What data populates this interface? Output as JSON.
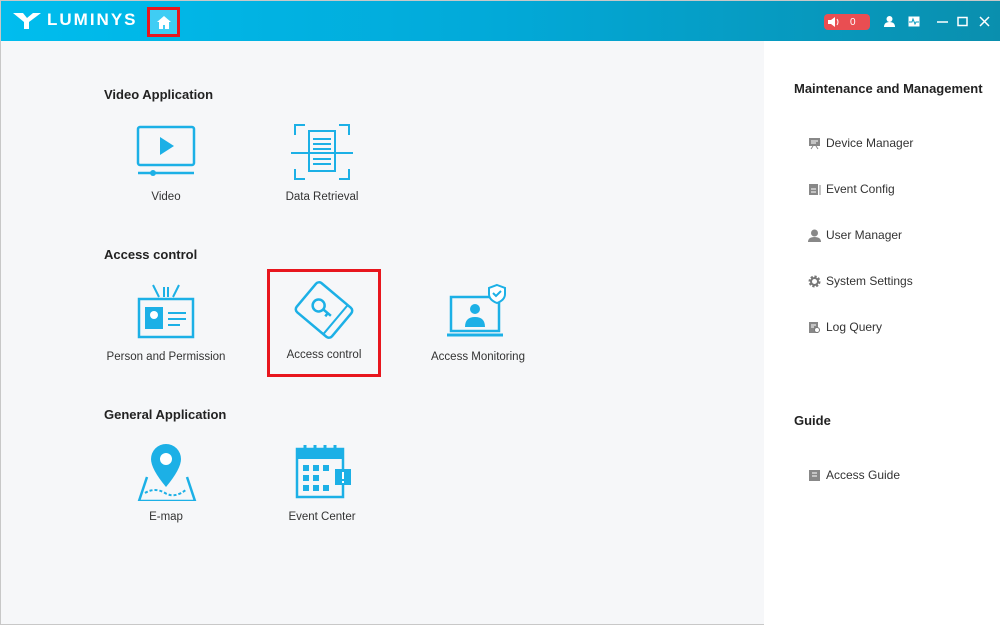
{
  "header": {
    "brand": "LUMINYS",
    "alarm_count": "0",
    "accent": "#00bdee"
  },
  "sections": [
    {
      "title": "Video Application",
      "tiles": [
        {
          "label": "Video",
          "icon": "video-player-icon"
        },
        {
          "label": "Data Retrieval",
          "icon": "document-scan-icon"
        }
      ]
    },
    {
      "title": "Access control",
      "tiles": [
        {
          "label": "Person and Permission",
          "icon": "id-badge-icon"
        },
        {
          "label": "Access control",
          "icon": "access-card-icon"
        },
        {
          "label": "Access Monitoring",
          "icon": "monitor-user-shield-icon"
        }
      ]
    },
    {
      "title": "General Application",
      "tiles": [
        {
          "label": "E-map",
          "icon": "map-pin-icon"
        },
        {
          "label": "Event Center",
          "icon": "calendar-alert-icon"
        }
      ]
    }
  ],
  "right": {
    "maintenance_title": "Maintenance and Management",
    "items": [
      {
        "label": "Device Manager"
      },
      {
        "label": "Event Config"
      },
      {
        "label": "User Manager"
      },
      {
        "label": "System Settings"
      },
      {
        "label": "Log Query"
      }
    ],
    "guide_title": "Guide",
    "guide_items": [
      {
        "label": "Access Guide"
      }
    ]
  }
}
